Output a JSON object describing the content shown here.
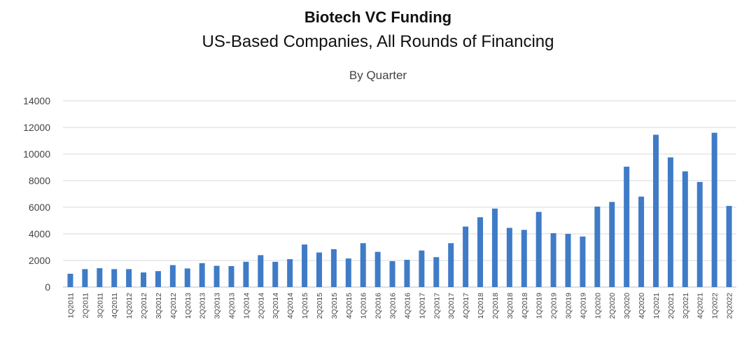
{
  "chart_data": {
    "type": "bar",
    "title": "Biotech VC Funding",
    "subtitle": "US-Based Companies, All Rounds of Financing",
    "subtitle2": "By Quarter",
    "xlabel": "",
    "ylabel": "",
    "ylim": [
      0,
      14000
    ],
    "yticks": [
      "0",
      "2000",
      "4000",
      "6000",
      "8000",
      "10000",
      "12000",
      "14000"
    ],
    "grid": true,
    "legend": "none",
    "color": "#3f7bc7",
    "categories": [
      "1Q2011",
      "2Q2011",
      "3Q2011",
      "4Q2011",
      "1Q2012",
      "2Q2012",
      "3Q2012",
      "4Q2012",
      "1Q2013",
      "2Q2013",
      "3Q2013",
      "4Q2013",
      "1Q2014",
      "2Q2014",
      "3Q2014",
      "4Q2014",
      "1Q2015",
      "2Q2015",
      "3Q2015",
      "4Q2015",
      "1Q2016",
      "2Q2016",
      "3Q2016",
      "4Q2016",
      "1Q2017",
      "2Q2017",
      "3Q2017",
      "4Q2017",
      "1Q2018",
      "2Q2018",
      "3Q2018",
      "4Q2018",
      "1Q2019",
      "2Q2019",
      "3Q2019",
      "4Q2019",
      "1Q2020",
      "2Q2020",
      "3Q2020",
      "4Q2020",
      "1Q2021",
      "2Q2021",
      "3Q2021",
      "4Q2021",
      "1Q2022",
      "2Q2022"
    ],
    "values": [
      1000,
      1350,
      1420,
      1350,
      1350,
      1100,
      1200,
      1650,
      1400,
      1800,
      1600,
      1580,
      1900,
      2400,
      1900,
      2100,
      3200,
      2600,
      2850,
      2150,
      3300,
      2650,
      1950,
      2050,
      2750,
      2250,
      3300,
      4550,
      5250,
      5900,
      4450,
      4300,
      5650,
      4050,
      4000,
      3800,
      6050,
      6400,
      9050,
      6800,
      11450,
      9750,
      8700,
      7900,
      11600,
      6100
    ]
  }
}
